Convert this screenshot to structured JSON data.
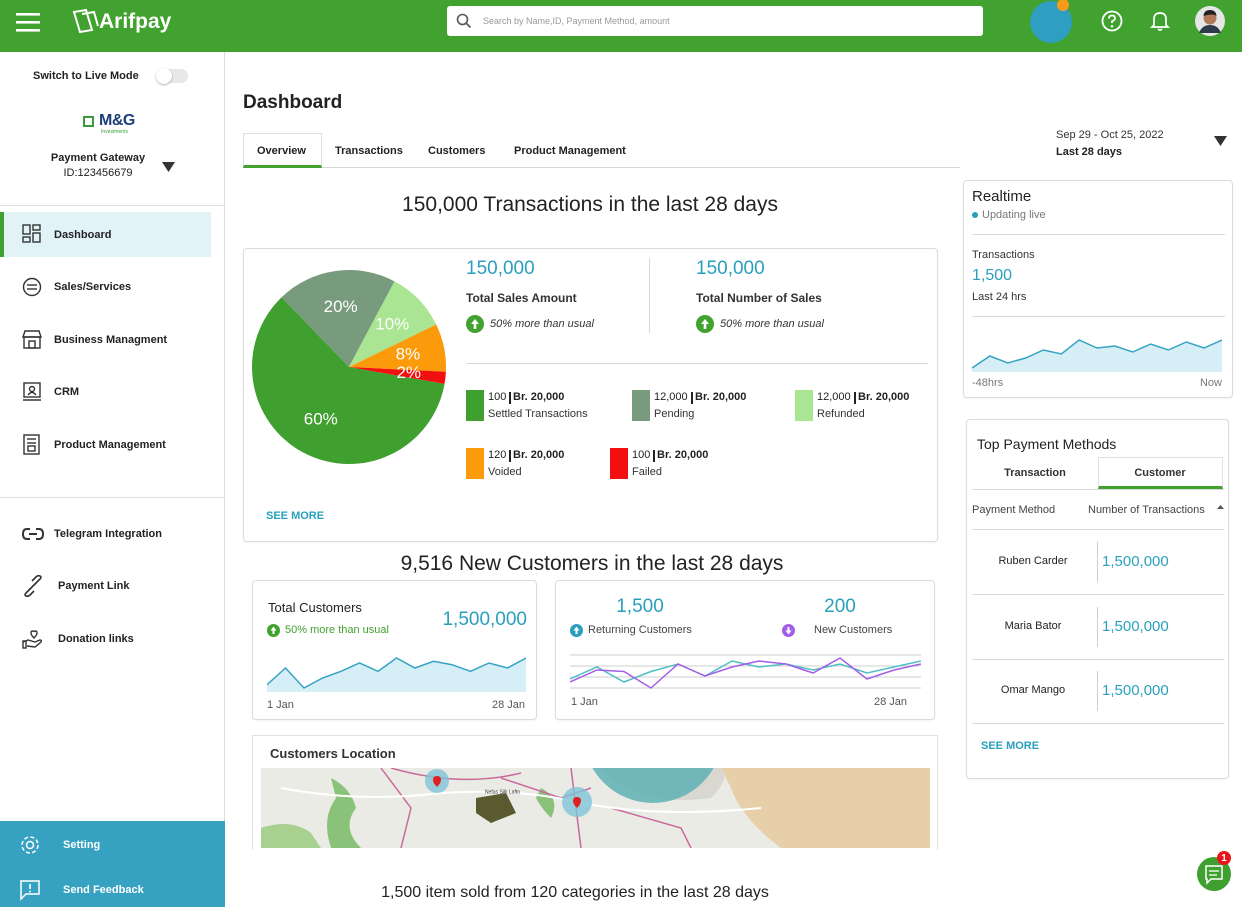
{
  "header": {
    "brand": "Arifpay",
    "search_placeholder": "Search by Name,ID, Payment Method, amount"
  },
  "sidebar": {
    "live_mode_label": "Switch to Live Mode",
    "merchant": {
      "logo": "M&G",
      "logo_sub": "Investments",
      "name": "Payment Gateway",
      "id": "ID:123456679"
    },
    "nav": [
      "Dashboard",
      "Sales/Services",
      "Business Managment",
      "CRM",
      "Product Management"
    ],
    "integrations": [
      "Telegram Integration",
      "Payment Link",
      "Donation links"
    ],
    "footer": [
      "Setting",
      "Send Feedback"
    ]
  },
  "dashboard": {
    "title": "Dashboard",
    "tabs": [
      "Overview",
      "Transactions",
      "Customers",
      "Product Management"
    ],
    "date_range": "Sep 29 - Oct 25, 2022",
    "date_period": "Last 28 days",
    "transactions_heading": "150,000 Transactions  in the last 28 days",
    "summary": {
      "stats": [
        {
          "value": "150,000",
          "label": "Total Sales Amount",
          "trend": "50% more than usual"
        },
        {
          "value": "150,000",
          "label": "Total Number of Sales",
          "trend": "50% more than usual"
        }
      ],
      "pie": {
        "values": [
          60,
          20,
          10,
          8,
          2
        ],
        "value_labels": [
          "60%",
          "20%",
          "10%",
          "8%",
          "2%"
        ],
        "colors": [
          "#3f9f2f",
          "#789b7d",
          "#a9e592",
          "#fb9b0c",
          "#f20f0f"
        ]
      },
      "legend": [
        {
          "count": "100",
          "amount": "Br. 20,000",
          "label": "Settled Transactions"
        },
        {
          "count": "12,000",
          "amount": "Br. 20,000",
          "label": "Pending"
        },
        {
          "count": "12,000",
          "amount": "Br. 20,000",
          "label": "Refunded"
        },
        {
          "count": "120",
          "amount": "Br. 20,000",
          "label": "Voided"
        },
        {
          "count": "100",
          "amount": "Br. 20,000",
          "label": "Failed"
        }
      ],
      "see_more": "SEE MORE"
    },
    "customers_heading": "9,516 New Customers in the last 28 days",
    "total_customers": {
      "title": "Total  Customers",
      "trend": "50% more than usual",
      "value": "1,500,000",
      "sparkline": [
        42,
        52,
        40,
        46,
        50,
        55,
        50,
        58,
        52,
        56,
        54,
        50,
        55,
        52,
        58
      ],
      "x_start": "1 Jan",
      "x_end": "28 Jan"
    },
    "customer_types": {
      "returning": {
        "value": "1,500",
        "label": "Returning Customers",
        "values": [
          40,
          48,
          38,
          45,
          50,
          42,
          52,
          48,
          50,
          46,
          50,
          44,
          48,
          52
        ]
      },
      "new": {
        "value": "200",
        "label": "New Customers",
        "values": [
          38,
          46,
          45,
          34,
          50,
          42,
          48,
          52,
          50,
          44,
          54,
          40,
          46,
          50
        ]
      },
      "x_start": "1 Jan",
      "x_end": "28 Jan"
    },
    "location": {
      "title": "Customers Location",
      "place": "Nefas Silk Lafto"
    },
    "items_heading": "1,500 item sold from 120 categories  in the last 28 days",
    "realtime": {
      "title": "Realtime",
      "status": "Updating live",
      "metric": "Transactions",
      "value": "1,500",
      "period": "Last 24 hrs",
      "sparkline": [
        30,
        42,
        35,
        40,
        48,
        44,
        58,
        50,
        52,
        46,
        54,
        48,
        56,
        50,
        58
      ],
      "x_start": "-48hrs",
      "x_end": "Now"
    },
    "top_payment_methods": {
      "title": "Top Payment Methods",
      "tabs": [
        "Transaction",
        "Customer"
      ],
      "columns": [
        "Payment Method",
        "Number of Transactions"
      ],
      "rows": [
        [
          "Ruben Carder",
          "1,500,000"
        ],
        [
          "Maria Bator",
          "1,500,000"
        ],
        [
          "Omar Mango",
          "1,500,000"
        ]
      ],
      "see_more": "SEE MORE"
    }
  },
  "chat": {
    "badge": 1
  }
}
